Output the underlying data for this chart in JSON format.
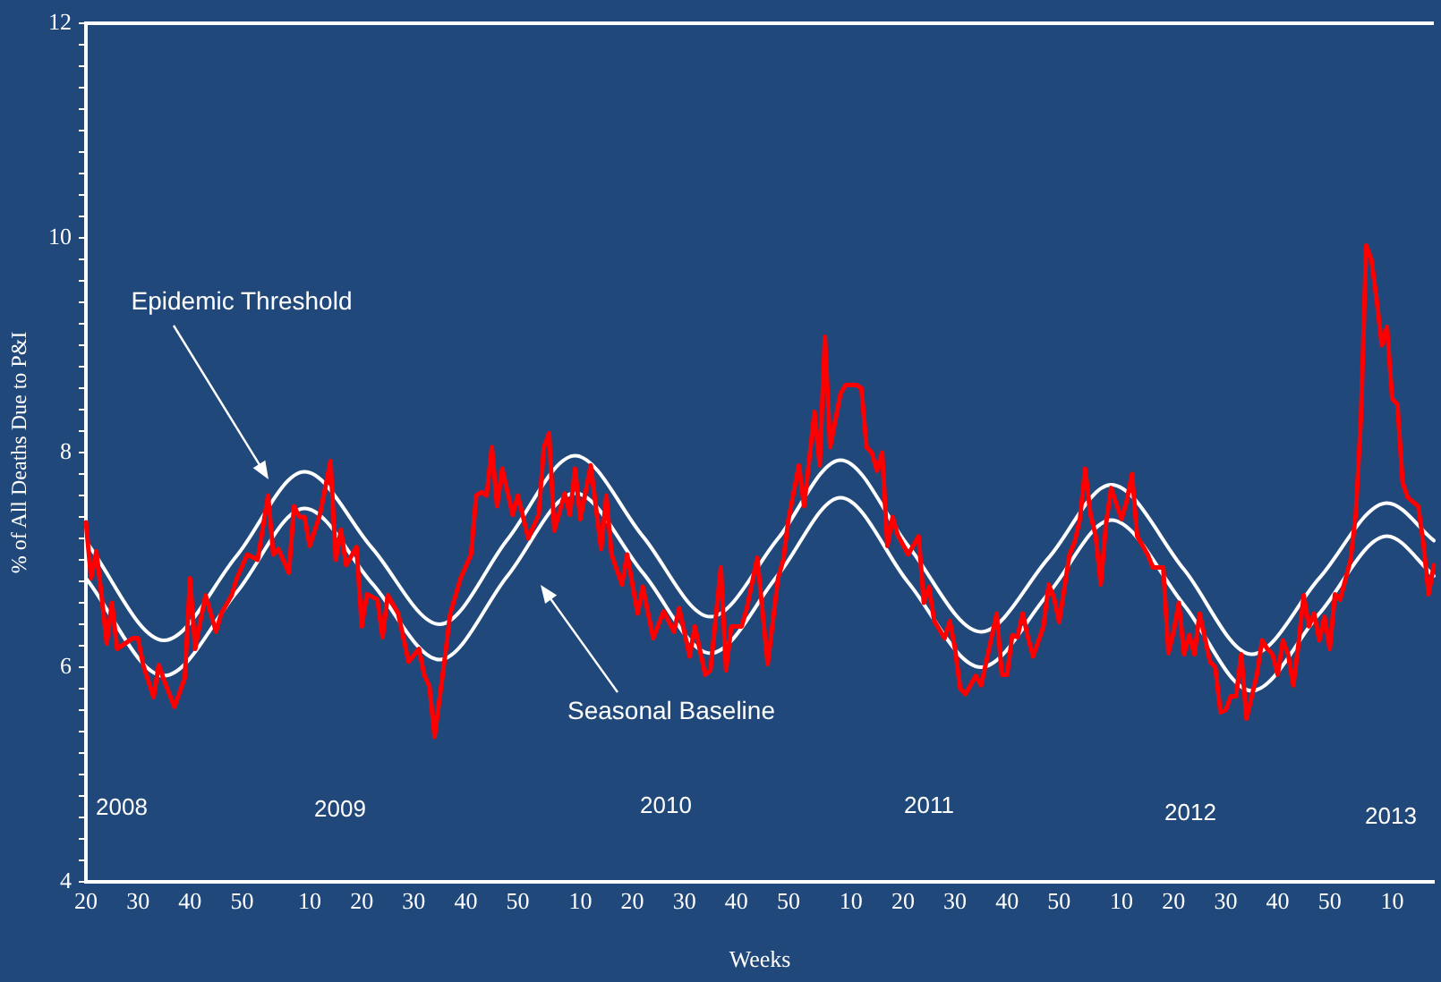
{
  "chart_data": {
    "type": "line",
    "xlabel": "Weeks",
    "ylabel": "% of All Deaths Due to P&I",
    "categories": [
      "20",
      null,
      null,
      null,
      null,
      null,
      null,
      null,
      null,
      null,
      "30",
      null,
      null,
      null,
      null,
      null,
      null,
      null,
      null,
      null,
      "40",
      null,
      null,
      null,
      null,
      null,
      null,
      null,
      null,
      null,
      "50",
      null,
      null,
      null,
      null,
      null,
      null,
      null,
      null,
      null,
      null,
      null,
      null,
      "10",
      null,
      null,
      null,
      null,
      null,
      null,
      null,
      null,
      null,
      "20",
      null,
      null,
      null,
      null,
      null,
      null,
      null,
      null,
      null,
      "30",
      null,
      null,
      null,
      null,
      null,
      null,
      null,
      null,
      null,
      "40",
      null,
      null,
      null,
      null,
      null,
      null,
      null,
      null,
      null,
      "50",
      null,
      null,
      null,
      null,
      null,
      null,
      null,
      null,
      null,
      null,
      null,
      "10",
      null,
      null,
      null,
      null,
      null,
      null,
      null,
      null,
      null,
      "20",
      null,
      null,
      null,
      null,
      null,
      null,
      null,
      null,
      null,
      "30",
      null,
      null,
      null,
      null,
      null,
      null,
      null,
      null,
      null,
      "40",
      null,
      null,
      null,
      null,
      null,
      null,
      null,
      null,
      null,
      "50",
      null,
      null,
      null,
      null,
      null,
      null,
      null,
      null,
      null,
      null,
      null,
      "10",
      null,
      null,
      null,
      null,
      null,
      null,
      null,
      null,
      null,
      "20",
      null,
      null,
      null,
      null,
      null,
      null,
      null,
      null,
      null,
      "30",
      null,
      null,
      null,
      null,
      null,
      null,
      null,
      null,
      null,
      "40",
      null,
      null,
      null,
      null,
      null,
      null,
      null,
      null,
      null,
      "50",
      null,
      null,
      null,
      null,
      null,
      null,
      null,
      null,
      null,
      null,
      null,
      "10",
      null,
      null,
      null,
      null,
      null,
      null,
      null,
      null,
      null,
      "20",
      null,
      null,
      null,
      null,
      null,
      null,
      null,
      null,
      null,
      "30",
      null,
      null,
      null,
      null,
      null,
      null,
      null,
      null,
      null,
      "40",
      null,
      null,
      null,
      null,
      null,
      null,
      null,
      null,
      null,
      "50",
      null,
      null,
      null,
      null,
      null,
      null,
      null,
      null,
      null,
      null,
      null,
      "10",
      null,
      null,
      null,
      null,
      null,
      null,
      null,
      null
    ],
    "ylim": [
      4,
      12
    ],
    "yticks": [
      4,
      {
        "value": 4.2,
        "label": null
      },
      {
        "value": 4.4,
        "label": null
      },
      {
        "value": 4.6,
        "label": null
      },
      {
        "value": 4.8,
        "label": null
      },
      {
        "value": 5,
        "label": null
      },
      {
        "value": 5.2,
        "label": null
      },
      {
        "value": 5.4,
        "label": null
      },
      {
        "value": 5.6,
        "label": null
      },
      {
        "value": 5.8,
        "label": null
      },
      6,
      {
        "value": 6.2,
        "label": null
      },
      {
        "value": 6.4,
        "label": null
      },
      {
        "value": 6.6,
        "label": null
      },
      {
        "value": 6.8,
        "label": null
      },
      {
        "value": 7,
        "label": null
      },
      {
        "value": 7.2,
        "label": null
      },
      {
        "value": 7.4,
        "label": null
      },
      {
        "value": 7.6,
        "label": null
      },
      {
        "value": 7.8,
        "label": null
      },
      8,
      {
        "value": 8.2,
        "label": null
      },
      {
        "value": 8.4,
        "label": null
      },
      {
        "value": 8.6,
        "label": null
      },
      {
        "value": 8.8,
        "label": null
      },
      {
        "value": 9,
        "label": null
      },
      {
        "value": 9.2,
        "label": null
      },
      {
        "value": 9.4,
        "label": null
      },
      {
        "value": 9.6,
        "label": null
      },
      {
        "value": 9.8,
        "label": null
      },
      10,
      {
        "value": 10.2,
        "label": null
      },
      {
        "value": 10.4,
        "label": null
      },
      {
        "value": 10.6,
        "label": null
      },
      {
        "value": 10.8,
        "label": null
      },
      {
        "value": 11,
        "label": null
      },
      {
        "value": 11.2,
        "label": null
      },
      {
        "value": 11.4,
        "label": null
      },
      {
        "value": 11.6,
        "label": null
      },
      {
        "value": 11.8,
        "label": null
      },
      12
    ],
    "grid": false,
    "legend": false,
    "marker": "none",
    "series": [
      {
        "color": "#ff0000",
        "values": [
          7.35,
          6.83,
          7.08,
          6.67,
          6.22,
          6.6,
          6.17,
          null,
          null,
          6.27,
          6.27,
          6.02,
          null,
          5.72,
          6.02,
          5.88,
          null,
          5.63,
          null,
          5.9,
          6.83,
          6.17,
          6.43,
          6.67,
          null,
          6.33,
          6.5,
          null,
          6.67,
          6.83,
          null,
          7.05,
          null,
          7.0,
          null,
          7.6,
          7.05,
          7.1,
          null,
          6.88,
          7.5,
          7.4,
          7.4,
          7.13,
          null,
          7.43,
          null,
          7.92,
          7.0,
          7.28,
          6.95,
          null,
          7.12,
          6.38,
          6.68,
          null,
          6.63,
          6.28,
          6.67,
          null,
          6.5,
          null,
          6.05,
          null,
          6.17,
          5.93,
          5.82,
          5.35,
          null,
          6.1,
          6.5,
          null,
          6.83,
          null,
          7.05,
          7.6,
          7.63,
          7.6,
          8.05,
          7.5,
          7.85,
          null,
          7.42,
          7.6,
          null,
          7.2,
          null,
          7.42,
          8.05,
          8.18,
          7.27,
          null,
          7.62,
          7.42,
          7.85,
          7.38,
          null,
          7.88,
          null,
          7.1,
          7.6,
          7.05,
          null,
          6.77,
          7.05,
          null,
          6.5,
          6.75,
          null,
          6.27,
          null,
          6.52,
          null,
          6.33,
          6.55,
          null,
          6.1,
          6.38,
          null,
          5.93,
          5.97,
          null,
          6.93,
          5.97,
          6.38,
          null,
          6.38,
          6.55,
          null,
          7.02,
          null,
          6.03,
          null,
          6.83,
          7.0,
          7.38,
          null,
          7.88,
          7.5,
          null,
          8.38,
          7.88,
          9.08,
          8.05,
          null,
          8.55,
          8.63,
          null,
          8.63,
          8.6,
          8.05,
          8.0,
          7.83,
          8.0,
          7.13,
          7.4,
          7.23,
          null,
          7.05,
          null,
          7.22,
          6.6,
          6.75,
          6.43,
          null,
          6.27,
          6.43,
          6.17,
          5.8,
          5.75,
          null,
          5.92,
          5.83,
          6.05,
          null,
          6.5,
          5.93,
          5.93,
          6.3,
          6.28,
          6.5,
          6.28,
          6.1,
          null,
          6.38,
          6.77,
          6.65,
          6.42,
          null,
          7.05,
          7.17,
          7.38,
          7.85,
          7.43,
          7.23,
          6.77,
          7.33,
          7.67,
          7.52,
          7.38,
          7.55,
          7.8,
          7.22,
          null,
          7.05,
          6.93,
          null,
          6.93,
          6.13,
          6.33,
          6.6,
          6.12,
          6.3,
          6.12,
          6.5,
          null,
          6.05,
          6.0,
          5.58,
          5.6,
          5.73,
          5.73,
          6.12,
          5.52,
          null,
          5.93,
          6.25,
          6.17,
          6.12,
          5.93,
          6.25,
          6.12,
          5.83,
          6.22,
          6.67,
          6.38,
          6.5,
          6.25,
          6.47,
          6.17,
          6.68,
          6.63,
          null,
          7.0,
          7.43,
          8.33,
          9.93,
          9.8,
          9.43,
          9.0,
          9.17,
          8.5,
          8.45,
          7.72,
          7.58,
          null,
          7.5,
          7.15,
          6.68,
          6.95
        ]
      },
      {
        "color": "#ffffff",
        "values": [
          7.17,
          null,
          null,
          null,
          null,
          null,
          null,
          null,
          null,
          null,
          null,
          null,
          null,
          null,
          null,
          6.25,
          null,
          null,
          null,
          null,
          null,
          null,
          null,
          null,
          null,
          null,
          null,
          null,
          null,
          7.04,
          null,
          null,
          null,
          null,
          null,
          null,
          null,
          null,
          null,
          null,
          null,
          null,
          7.82,
          null,
          null,
          null,
          null,
          null,
          null,
          null,
          null,
          null,
          null,
          null,
          null,
          7.11,
          null,
          null,
          null,
          null,
          null,
          null,
          null,
          null,
          null,
          null,
          null,
          null,
          6.4,
          null,
          null,
          null,
          null,
          null,
          null,
          null,
          null,
          null,
          null,
          null,
          null,
          7.19,
          null,
          null,
          null,
          null,
          null,
          null,
          null,
          null,
          null,
          null,
          null,
          null,
          7.97,
          null,
          null,
          null,
          null,
          null,
          null,
          null,
          null,
          null,
          null,
          null,
          null,
          7.22,
          null,
          null,
          null,
          null,
          null,
          null,
          null,
          null,
          null,
          null,
          null,
          null,
          6.47,
          null,
          null,
          null,
          null,
          null,
          null,
          null,
          null,
          null,
          null,
          null,
          null,
          7.2,
          null,
          null,
          null,
          null,
          null,
          null,
          null,
          null,
          null,
          null,
          null,
          7.93,
          null,
          null,
          null,
          null,
          null,
          null,
          null,
          null,
          null,
          null,
          null,
          null,
          7.13,
          null,
          null,
          null,
          null,
          null,
          null,
          null,
          null,
          null,
          null,
          null,
          null,
          null,
          6.33,
          null,
          null,
          null,
          null,
          null,
          null,
          null,
          null,
          null,
          null,
          null,
          null,
          7.02,
          null,
          null,
          null,
          null,
          null,
          null,
          null,
          null,
          null,
          null,
          null,
          7.7,
          null,
          null,
          null,
          null,
          null,
          null,
          null,
          null,
          null,
          null,
          null,
          null,
          null,
          6.91,
          null,
          null,
          null,
          null,
          null,
          null,
          null,
          null,
          null,
          null,
          null,
          null,
          6.12,
          null,
          null,
          null,
          null,
          null,
          null,
          null,
          null,
          null,
          null,
          null,
          null,
          6.83,
          null,
          null,
          null,
          null,
          null,
          null,
          null,
          null,
          null,
          null,
          null,
          null,
          7.53,
          null,
          null,
          null,
          null,
          null,
          null,
          null,
          null,
          7.18
        ]
      },
      {
        "color": "#ffffff",
        "values": [
          6.83,
          null,
          null,
          null,
          null,
          null,
          null,
          null,
          null,
          null,
          null,
          null,
          null,
          null,
          null,
          5.92,
          null,
          null,
          null,
          null,
          null,
          null,
          null,
          null,
          null,
          null,
          null,
          null,
          null,
          6.7,
          null,
          null,
          null,
          null,
          null,
          null,
          null,
          null,
          null,
          null,
          null,
          null,
          7.48,
          null,
          null,
          null,
          null,
          null,
          null,
          null,
          null,
          null,
          null,
          null,
          null,
          6.78,
          null,
          null,
          null,
          null,
          null,
          null,
          null,
          null,
          null,
          null,
          null,
          null,
          6.07,
          null,
          null,
          null,
          null,
          null,
          null,
          null,
          null,
          null,
          null,
          null,
          null,
          6.85,
          null,
          null,
          null,
          null,
          null,
          null,
          null,
          null,
          null,
          null,
          null,
          null,
          7.62,
          null,
          null,
          null,
          null,
          null,
          null,
          null,
          null,
          null,
          null,
          null,
          null,
          6.88,
          null,
          null,
          null,
          null,
          null,
          null,
          null,
          null,
          null,
          null,
          null,
          null,
          6.13,
          null,
          null,
          null,
          null,
          null,
          null,
          null,
          null,
          null,
          null,
          null,
          null,
          6.86,
          null,
          null,
          null,
          null,
          null,
          null,
          null,
          null,
          null,
          null,
          null,
          7.58,
          null,
          null,
          null,
          null,
          null,
          null,
          null,
          null,
          null,
          null,
          null,
          null,
          6.79,
          null,
          null,
          null,
          null,
          null,
          null,
          null,
          null,
          null,
          null,
          null,
          null,
          null,
          6.0,
          null,
          null,
          null,
          null,
          null,
          null,
          null,
          null,
          null,
          null,
          null,
          null,
          6.69,
          null,
          null,
          null,
          null,
          null,
          null,
          null,
          null,
          null,
          null,
          null,
          7.37,
          null,
          null,
          null,
          null,
          null,
          null,
          null,
          null,
          null,
          null,
          null,
          null,
          null,
          6.58,
          null,
          null,
          null,
          null,
          null,
          null,
          null,
          null,
          null,
          null,
          null,
          null,
          5.78,
          null,
          null,
          null,
          null,
          null,
          null,
          null,
          null,
          null,
          null,
          null,
          null,
          6.5,
          null,
          null,
          null,
          null,
          null,
          null,
          null,
          null,
          null,
          null,
          null,
          null,
          7.22,
          null,
          null,
          null,
          null,
          null,
          null,
          null,
          null,
          6.85
        ]
      }
    ],
    "annotations": [
      "Epidemic Threshold",
      "Seasonal Baseline",
      "2008",
      "2009",
      "2010",
      "2011",
      "2012",
      "2013"
    ]
  }
}
